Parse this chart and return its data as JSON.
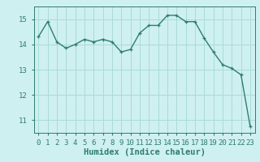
{
  "x": [
    0,
    1,
    2,
    3,
    4,
    5,
    6,
    7,
    8,
    9,
    10,
    11,
    12,
    13,
    14,
    15,
    16,
    17,
    18,
    19,
    20,
    21,
    22,
    23
  ],
  "y": [
    14.3,
    14.9,
    14.1,
    13.85,
    14.0,
    14.2,
    14.1,
    14.2,
    14.1,
    13.7,
    13.8,
    14.45,
    14.75,
    14.75,
    15.15,
    15.15,
    14.9,
    14.9,
    14.25,
    13.7,
    13.2,
    13.05,
    12.8,
    10.75
  ],
  "line_color": "#2e7d6e",
  "marker": "+",
  "marker_size": 3,
  "bg_color": "#cff0f0",
  "grid_color": "#aadada",
  "axis_color": "#2e7d6e",
  "xlabel": "Humidex (Indice chaleur)",
  "ylim": [
    10.5,
    15.5
  ],
  "xlim": [
    -0.5,
    23.5
  ],
  "yticks": [
    11,
    12,
    13,
    14,
    15
  ],
  "xticks": [
    0,
    1,
    2,
    3,
    4,
    5,
    6,
    7,
    8,
    9,
    10,
    11,
    12,
    13,
    14,
    15,
    16,
    17,
    18,
    19,
    20,
    21,
    22,
    23
  ],
  "tick_fontsize": 6.5,
  "label_fontsize": 7.5,
  "line_width": 1.0
}
